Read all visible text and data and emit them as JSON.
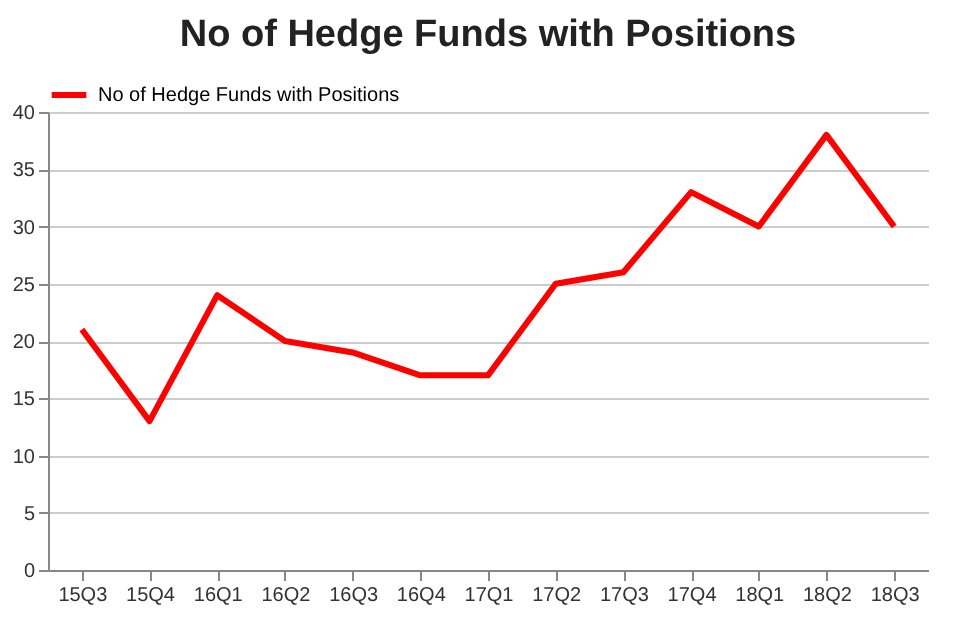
{
  "chart_data": {
    "type": "line",
    "title": "No of Hedge Funds with Positions",
    "categories": [
      "15Q3",
      "15Q4",
      "16Q1",
      "16Q2",
      "16Q3",
      "16Q4",
      "17Q1",
      "17Q2",
      "17Q3",
      "17Q4",
      "18Q1",
      "18Q2",
      "18Q3"
    ],
    "series": [
      {
        "name": "No of Hedge Funds with Positions",
        "color": "#ff0000",
        "values": [
          21,
          13,
          24,
          20,
          19,
          17,
          17,
          25,
          26,
          33,
          30,
          38,
          30
        ]
      }
    ],
    "ylim": [
      0,
      40
    ],
    "yticks": [
      0,
      5,
      10,
      15,
      20,
      25,
      30,
      35,
      40
    ],
    "grid": "y",
    "legend": "top",
    "line_style": "solid"
  }
}
